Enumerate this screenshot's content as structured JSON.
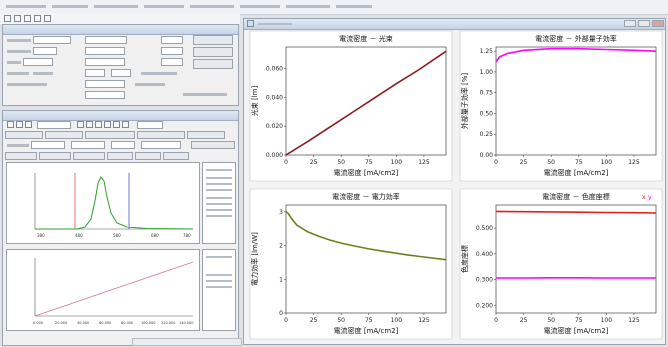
{
  "chart_window": {
    "icon": "window-app-icon",
    "controls": [
      "minimize-icon",
      "maximize-icon",
      "close-icon"
    ]
  },
  "side_panels": {
    "spectrum_axis_ticks": [
      "380",
      "480",
      "580",
      "680",
      "780"
    ],
    "lum_axis_ticks": [
      "0.000",
      "20.000",
      "40.000",
      "60.000",
      "80.000",
      "100.000",
      "120.000",
      "140.000"
    ]
  },
  "chart_data": [
    {
      "type": "line",
      "title": "電流密度 － 光束",
      "xlabel": "電流密度 [mA/cm2]",
      "ylabel": "光束 [lm]",
      "xlim": [
        0,
        145
      ],
      "ylim": [
        0,
        0.075
      ],
      "xticks": [
        "0",
        "25",
        "50",
        "75",
        "100",
        "125"
      ],
      "yticks": [
        "0.000",
        "0.020",
        "0.040",
        "0.060"
      ],
      "series": [
        {
          "color": "#8b1a1a",
          "x": [
            0,
            20,
            40,
            60,
            80,
            100,
            120,
            145
          ],
          "y": [
            0.0,
            0.0095,
            0.0195,
            0.0295,
            0.0395,
            0.0495,
            0.059,
            0.072
          ]
        }
      ]
    },
    {
      "type": "line",
      "title": "電流密度 － 外部量子効率",
      "xlabel": "電流密度 [mA/cm2]",
      "ylabel": "外部量子効率 [%]",
      "xlim": [
        0,
        145
      ],
      "ylim": [
        0,
        1.3
      ],
      "xticks": [
        "0",
        "25",
        "50",
        "75",
        "100",
        "125"
      ],
      "yticks": [
        "0.00",
        "0.25",
        "0.50",
        "0.75",
        "1.00",
        "1.25"
      ],
      "series": [
        {
          "color": "#ff00ff",
          "x": [
            0,
            3,
            10,
            25,
            50,
            75,
            100,
            125,
            145
          ],
          "y": [
            1.12,
            1.18,
            1.22,
            1.26,
            1.28,
            1.28,
            1.27,
            1.26,
            1.25
          ]
        }
      ]
    },
    {
      "type": "line",
      "title": "電流密度 － 電力効率",
      "xlabel": "電流密度 [mA/cm2]",
      "ylabel": "電力効率 [lm/W]",
      "xlim": [
        0,
        145
      ],
      "ylim": [
        0,
        3.2
      ],
      "xticks": [
        "0",
        "25",
        "50",
        "75",
        "100",
        "125"
      ],
      "yticks": [
        "0",
        "1",
        "2",
        "3"
      ],
      "series": [
        {
          "color": "#6f7d1d",
          "x": [
            0,
            2,
            5,
            10,
            20,
            30,
            40,
            50,
            60,
            75,
            90,
            110,
            125,
            145
          ],
          "y": [
            3.0,
            2.95,
            2.8,
            2.6,
            2.4,
            2.27,
            2.16,
            2.07,
            2.0,
            1.9,
            1.82,
            1.72,
            1.66,
            1.58
          ]
        }
      ]
    },
    {
      "type": "line",
      "title": "電流密度 － 色度座標",
      "legend": [
        "x",
        "y"
      ],
      "xlabel": "電流密度 [mA/cm2]",
      "ylabel": "色度座標",
      "xlim": [
        0,
        145
      ],
      "ylim": [
        0.17,
        0.59
      ],
      "xticks": [
        "0",
        "25",
        "50",
        "75",
        "100",
        "125"
      ],
      "yticks": [
        "0.200",
        "0.300",
        "0.400",
        "0.500"
      ],
      "series": [
        {
          "name": "x",
          "color": "#e02020",
          "x": [
            0,
            25,
            50,
            75,
            100,
            125,
            145
          ],
          "y": [
            0.565,
            0.564,
            0.563,
            0.562,
            0.561,
            0.56,
            0.559
          ]
        },
        {
          "name": "y",
          "color": "#ff00ff",
          "x": [
            0,
            25,
            50,
            75,
            100,
            125,
            145
          ],
          "y": [
            0.306,
            0.306,
            0.307,
            0.307,
            0.306,
            0.306,
            0.306
          ]
        }
      ]
    }
  ]
}
